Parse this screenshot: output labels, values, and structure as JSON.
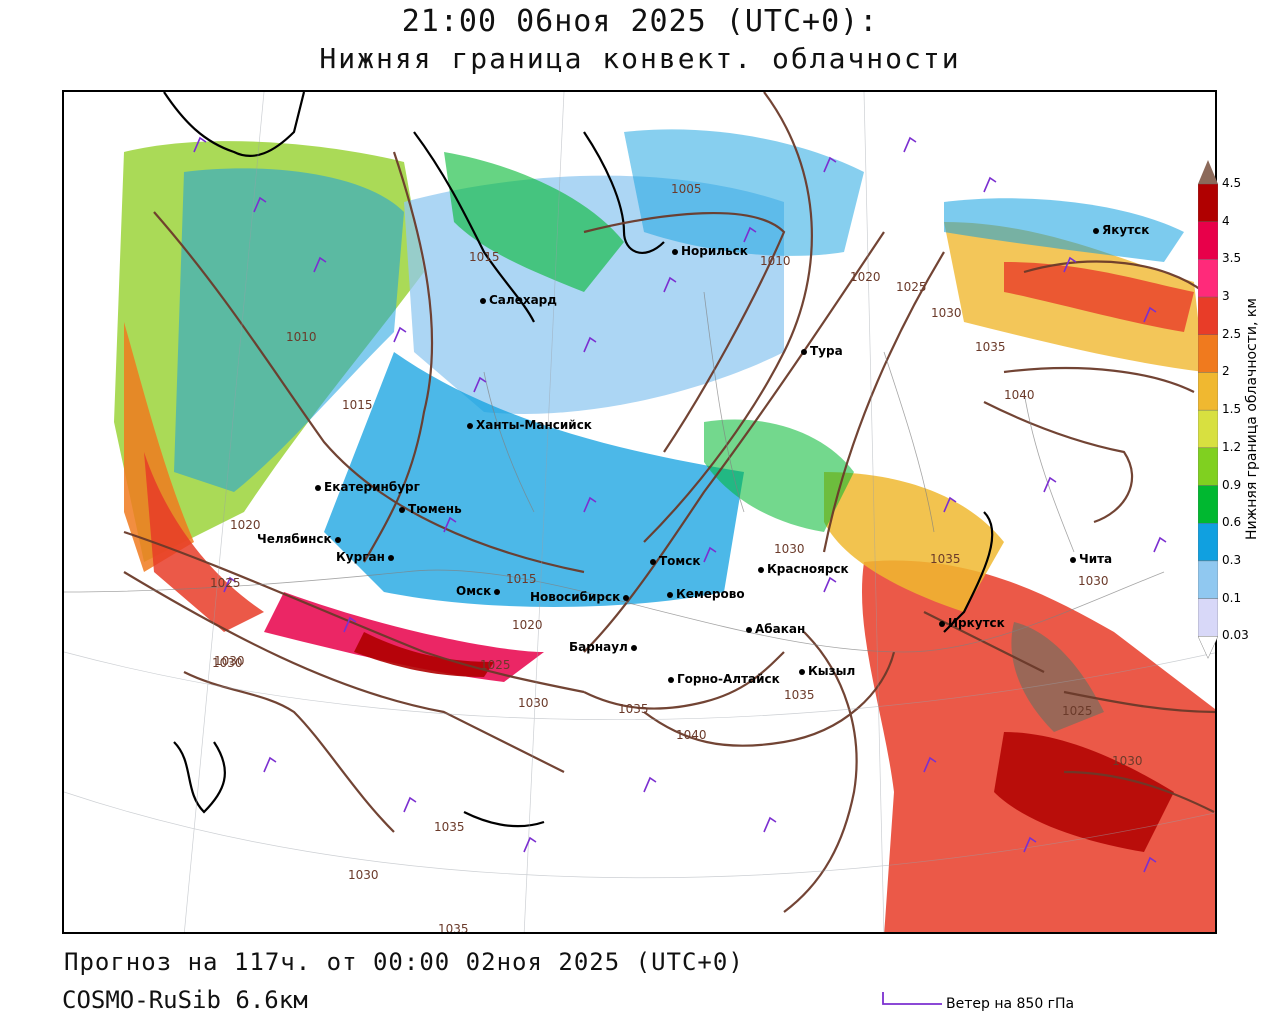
{
  "title": {
    "line1": "21:00 06ноя 2025 (UTC+0):",
    "line2": "Нижняя граница конвект. облачности"
  },
  "footer": {
    "forecast": "Прогноз на 117ч. от 00:00 02ноя 2025 (UTC+0)",
    "model": "COSMO-RuSib 6.6км",
    "wind_legend": "Ветер на 850 гПа"
  },
  "colorbar": {
    "title": "Нижняя граница облачности, км",
    "levels": [
      "4.5",
      "4",
      "3.5",
      "3",
      "2.5",
      "2",
      "1.5",
      "1.2",
      "0.9",
      "0.6",
      "0.3",
      "0.1",
      "0.03"
    ],
    "colors": [
      "#8c6a5a",
      "#b00000",
      "#e8004a",
      "#ff2a7a",
      "#e83c28",
      "#f07a1e",
      "#f0b830",
      "#d8e040",
      "#80d020",
      "#00b830",
      "#10a0e0",
      "#90c8f0",
      "#d8d8f8",
      "#ffffff"
    ]
  },
  "cities": [
    {
      "name": "Якутск"
    },
    {
      "name": "Норильск"
    },
    {
      "name": "Салехард"
    },
    {
      "name": "Тура"
    },
    {
      "name": "Ханты-Мансийск"
    },
    {
      "name": "Екатеринбург"
    },
    {
      "name": "Тюмень"
    },
    {
      "name": "Челябинск"
    },
    {
      "name": "Курган"
    },
    {
      "name": "Омск"
    },
    {
      "name": "Новосибирск"
    },
    {
      "name": "Томск"
    },
    {
      "name": "Кемерово"
    },
    {
      "name": "Красноярск"
    },
    {
      "name": "Абакан"
    },
    {
      "name": "Барнаул"
    },
    {
      "name": "Горно-Алтайск"
    },
    {
      "name": "Кызыл"
    },
    {
      "name": "Иркутск"
    },
    {
      "name": "Чита"
    }
  ],
  "isobar_labels": [
    "1005",
    "1010",
    "1015",
    "1015",
    "1020",
    "1025",
    "1030",
    "1035",
    "1040",
    "1010",
    "1015",
    "1020",
    "1025",
    "1030",
    "1020",
    "1025",
    "1030",
    "1035",
    "1040",
    "1030",
    "1035",
    "1025",
    "1030",
    "1030",
    "1035",
    "1030",
    "1035",
    "1030",
    "1035"
  ]
}
